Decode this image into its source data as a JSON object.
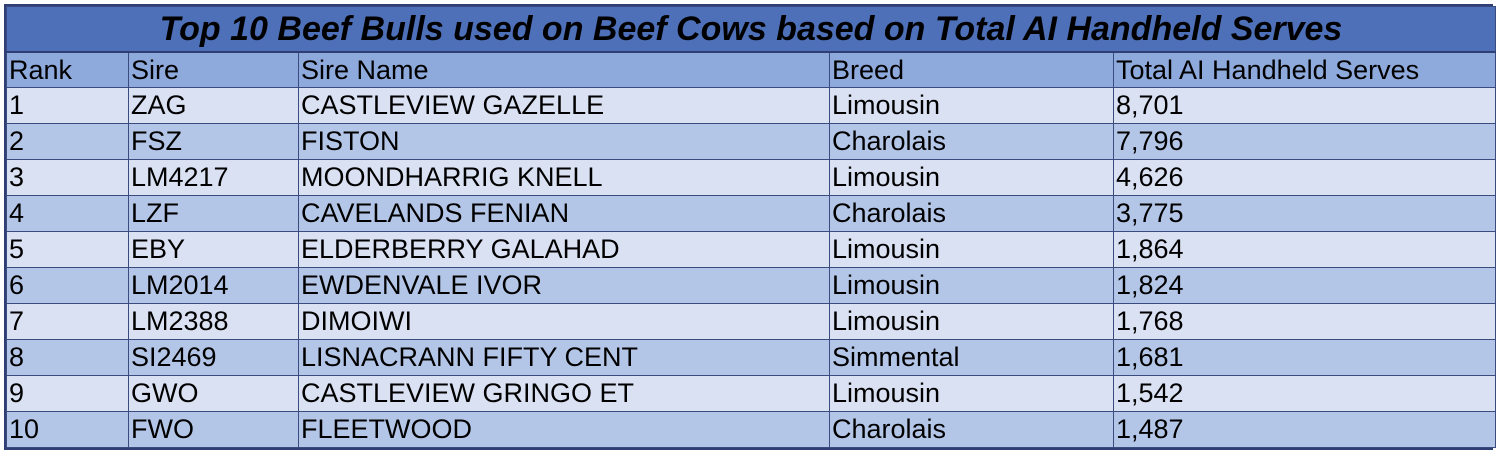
{
  "table": {
    "title": "Top 10 Beef Bulls used on Beef Cows based on Total AI Handheld Serves",
    "headers": [
      "Rank",
      "Sire",
      "Sire Name",
      "Breed",
      "Total AI Handheld Serves"
    ],
    "rows": [
      [
        "1",
        "ZAG",
        "CASTLEVIEW GAZELLE",
        "Limousin",
        "8,701"
      ],
      [
        "2",
        "FSZ",
        "FISTON",
        "Charolais",
        "7,796"
      ],
      [
        "3",
        "LM4217",
        "MOONDHARRIG KNELL",
        "Limousin",
        "4,626"
      ],
      [
        "4",
        "LZF",
        "CAVELANDS FENIAN",
        "Charolais",
        "3,775"
      ],
      [
        "5",
        "EBY",
        "ELDERBERRY GALAHAD",
        "Limousin",
        "1,864"
      ],
      [
        "6",
        "LM2014",
        "EWDENVALE IVOR",
        "Limousin",
        "1,824"
      ],
      [
        "7",
        "LM2388",
        "DIMOIWI",
        "Limousin",
        "1,768"
      ],
      [
        "8",
        "SI2469",
        "LISNACRANN FIFTY CENT",
        "Simmental",
        "1,681"
      ],
      [
        "9",
        "GWO",
        "CASTLEVIEW GRINGO ET",
        "Limousin",
        "1,542"
      ],
      [
        "10",
        "FWO",
        "FLEETWOOD",
        "Charolais",
        "1,487"
      ]
    ]
  },
  "colors": {
    "title_bg": "#4e70b9",
    "header_bg": "#8ea9db",
    "row_light": "#dae1f3",
    "row_dark": "#b4c6e7",
    "border": "#2f3f73"
  }
}
